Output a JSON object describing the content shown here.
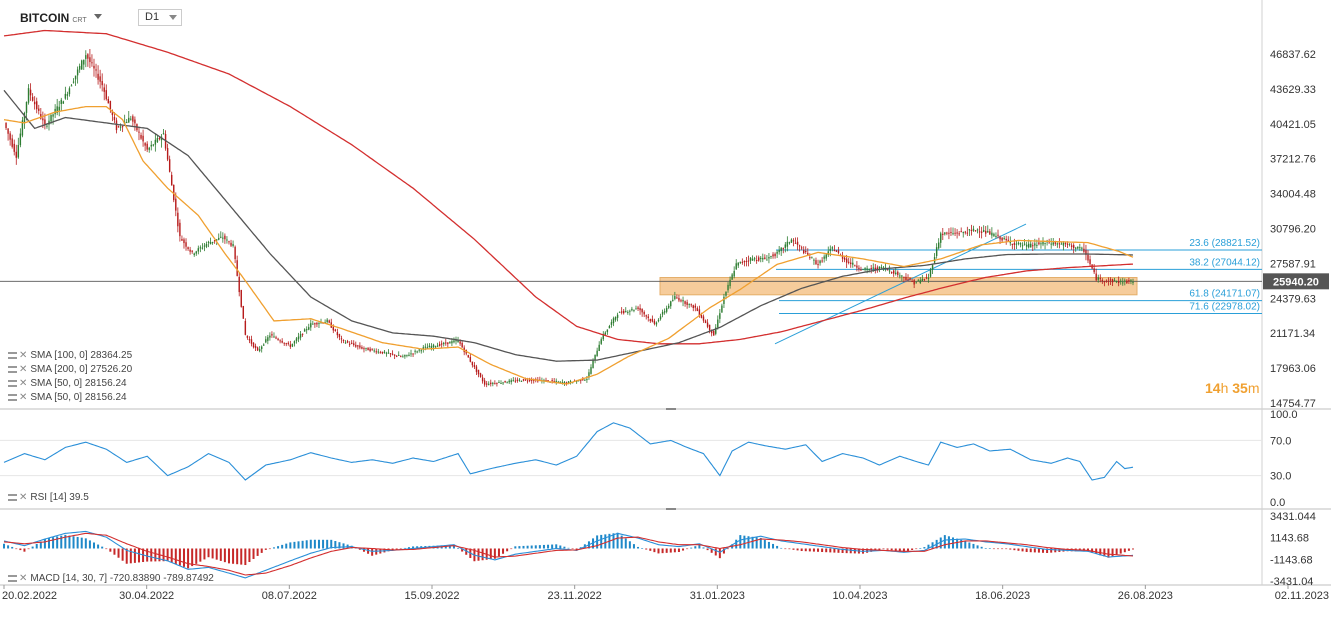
{
  "header": {
    "symbol": "BITCOIN",
    "symbol_sub": "CRT",
    "timeframe": "D1"
  },
  "price_axis": {
    "labels": [
      "46837.62",
      "43629.33",
      "40421.05",
      "37212.76",
      "34004.48",
      "30796.20",
      "27587.91",
      "24379.63",
      "21171.34",
      "17963.06",
      "14754.77"
    ],
    "current_price": "25940.20",
    "current_value": 25940.2
  },
  "rsi_axis": {
    "labels": [
      "100.0",
      "70.0",
      "30.0",
      "0.0"
    ]
  },
  "macd_axis": {
    "labels": [
      "3431.044",
      "1143.68",
      "-1143.68",
      "-3431.04"
    ]
  },
  "x_axis": {
    "labels": [
      "20.02.2022",
      "30.04.2022",
      "08.07.2022",
      "15.09.2022",
      "23.11.2022",
      "31.01.2023",
      "10.04.2023",
      "18.06.2023",
      "26.08.2023",
      "02.11.2023"
    ]
  },
  "fib_levels": [
    {
      "label": "23.6 (28821.52)",
      "value": 28821.52
    },
    {
      "label": "38.2 (27044.12)",
      "value": 27044.12
    },
    {
      "label": "61.8 (24171.07)",
      "value": 24171.07
    },
    {
      "label": "71.6 (22978.02)",
      "value": 22978.02
    }
  ],
  "indicators": {
    "sma100": "SMA [100, 0] 28364.25",
    "sma200": "SMA [200, 0] 27526.20",
    "sma50a": "SMA [50, 0] 28156.24",
    "sma50b": "SMA [50, 0] 28156.24",
    "rsi": "RSI [14] 39.5",
    "macd": "MACD [14, 30, 7] -720.83890 -789.87492"
  },
  "timer": {
    "hours": "14",
    "h_unit": "h",
    "minutes": "35",
    "m_unit": "m"
  },
  "colors": {
    "bull": "#2e7d32",
    "bear": "#b71c1c",
    "sma200": "#d32f2f",
    "sma100": "#555555",
    "sma50": "#f0a030",
    "fib": "#2a9fd8",
    "zone": "#f5c48a",
    "rsi": "#2a8fd8",
    "macd_line": "#2a8fd8",
    "signal_line": "#d32f2f"
  },
  "chart_data": {
    "type": "candlestick",
    "x_dates": [
      "2022-02-20",
      "2023-10-31"
    ],
    "ylim": [
      14754.77,
      50000
    ],
    "price_path": [
      [
        0,
        40500
      ],
      [
        6,
        37500
      ],
      [
        12,
        43500
      ],
      [
        20,
        40200
      ],
      [
        30,
        43000
      ],
      [
        40,
        46800
      ],
      [
        48,
        44000
      ],
      [
        55,
        40000
      ],
      [
        62,
        41000
      ],
      [
        70,
        38000
      ],
      [
        78,
        39500
      ],
      [
        86,
        30000
      ],
      [
        92,
        28500
      ],
      [
        100,
        29500
      ],
      [
        107,
        30000
      ],
      [
        112,
        29200
      ],
      [
        118,
        21000
      ],
      [
        124,
        19500
      ],
      [
        130,
        21000
      ],
      [
        140,
        20000
      ],
      [
        150,
        22000
      ],
      [
        158,
        22300
      ],
      [
        165,
        20500
      ],
      [
        175,
        19800
      ],
      [
        185,
        19400
      ],
      [
        195,
        19000
      ],
      [
        205,
        19800
      ],
      [
        215,
        20200
      ],
      [
        222,
        20500
      ],
      [
        228,
        18600
      ],
      [
        235,
        16500
      ],
      [
        245,
        16700
      ],
      [
        255,
        16900
      ],
      [
        265,
        16800
      ],
      [
        275,
        16600
      ],
      [
        285,
        17000
      ],
      [
        292,
        20700
      ],
      [
        300,
        23000
      ],
      [
        310,
        23500
      ],
      [
        318,
        22000
      ],
      [
        328,
        24500
      ],
      [
        338,
        23500
      ],
      [
        347,
        21000
      ],
      [
        352,
        24500
      ],
      [
        358,
        27500
      ],
      [
        365,
        28000
      ],
      [
        372,
        28000
      ],
      [
        378,
        28500
      ],
      [
        385,
        29800
      ],
      [
        392,
        28500
      ],
      [
        398,
        27500
      ],
      [
        405,
        29000
      ],
      [
        412,
        27800
      ],
      [
        420,
        27000
      ],
      [
        430,
        27200
      ],
      [
        438,
        26500
      ],
      [
        445,
        25800
      ],
      [
        452,
        26300
      ],
      [
        458,
        30300
      ],
      [
        468,
        30400
      ],
      [
        476,
        30700
      ],
      [
        484,
        30200
      ],
      [
        492,
        29500
      ],
      [
        500,
        29200
      ],
      [
        510,
        29500
      ],
      [
        520,
        29300
      ],
      [
        528,
        28800
      ],
      [
        534,
        26200
      ],
      [
        540,
        26000
      ],
      [
        546,
        25900
      ],
      [
        552,
        25940
      ]
    ],
    "sma200_path": [
      [
        0,
        48500
      ],
      [
        20,
        49000
      ],
      [
        50,
        48700
      ],
      [
        80,
        47000
      ],
      [
        110,
        45000
      ],
      [
        140,
        42000
      ],
      [
        170,
        38500
      ],
      [
        200,
        34500
      ],
      [
        230,
        29800
      ],
      [
        260,
        24500
      ],
      [
        280,
        21800
      ],
      [
        300,
        20600
      ],
      [
        320,
        20200
      ],
      [
        340,
        20200
      ],
      [
        360,
        20600
      ],
      [
        380,
        21300
      ],
      [
        400,
        22300
      ],
      [
        420,
        23300
      ],
      [
        440,
        24400
      ],
      [
        460,
        25400
      ],
      [
        480,
        26300
      ],
      [
        500,
        26900
      ],
      [
        520,
        27200
      ],
      [
        540,
        27400
      ],
      [
        552,
        27526
      ]
    ],
    "sma100_path": [
      [
        0,
        43500
      ],
      [
        15,
        40000
      ],
      [
        30,
        41000
      ],
      [
        50,
        40500
      ],
      [
        70,
        40000
      ],
      [
        90,
        37500
      ],
      [
        110,
        33000
      ],
      [
        130,
        28500
      ],
      [
        150,
        24500
      ],
      [
        170,
        22300
      ],
      [
        190,
        21200
      ],
      [
        210,
        20900
      ],
      [
        230,
        20300
      ],
      [
        250,
        19200
      ],
      [
        270,
        18600
      ],
      [
        290,
        18700
      ],
      [
        310,
        19500
      ],
      [
        330,
        20300
      ],
      [
        350,
        21700
      ],
      [
        370,
        23700
      ],
      [
        390,
        25300
      ],
      [
        410,
        26400
      ],
      [
        430,
        27100
      ],
      [
        450,
        27400
      ],
      [
        470,
        28000
      ],
      [
        490,
        28400
      ],
      [
        510,
        28450
      ],
      [
        530,
        28450
      ],
      [
        552,
        28364
      ]
    ],
    "sma50_path": [
      [
        0,
        40800
      ],
      [
        10,
        40500
      ],
      [
        25,
        41500
      ],
      [
        40,
        42000
      ],
      [
        50,
        42000
      ],
      [
        58,
        40800
      ],
      [
        68,
        37000
      ],
      [
        80,
        34500
      ],
      [
        95,
        32000
      ],
      [
        108,
        28500
      ],
      [
        118,
        26000
      ],
      [
        132,
        22300
      ],
      [
        150,
        22500
      ],
      [
        165,
        21600
      ],
      [
        185,
        20300
      ],
      [
        205,
        19700
      ],
      [
        222,
        19900
      ],
      [
        238,
        18300
      ],
      [
        255,
        17000
      ],
      [
        275,
        16500
      ],
      [
        290,
        17400
      ],
      [
        305,
        19000
      ],
      [
        325,
        20700
      ],
      [
        345,
        23500
      ],
      [
        360,
        25200
      ],
      [
        378,
        27500
      ],
      [
        398,
        28600
      ],
      [
        420,
        28000
      ],
      [
        440,
        27300
      ],
      [
        458,
        28000
      ],
      [
        478,
        29300
      ],
      [
        496,
        29700
      ],
      [
        512,
        29600
      ],
      [
        530,
        29500
      ],
      [
        545,
        28700
      ],
      [
        552,
        28156
      ]
    ],
    "rsi_path": [
      [
        0,
        45
      ],
      [
        10,
        55
      ],
      [
        20,
        48
      ],
      [
        30,
        62
      ],
      [
        40,
        68
      ],
      [
        50,
        60
      ],
      [
        60,
        45
      ],
      [
        70,
        52
      ],
      [
        80,
        30
      ],
      [
        90,
        40
      ],
      [
        100,
        55
      ],
      [
        110,
        45
      ],
      [
        118,
        25
      ],
      [
        128,
        42
      ],
      [
        140,
        48
      ],
      [
        150,
        56
      ],
      [
        160,
        50
      ],
      [
        170,
        45
      ],
      [
        180,
        48
      ],
      [
        190,
        44
      ],
      [
        200,
        50
      ],
      [
        210,
        46
      ],
      [
        222,
        55
      ],
      [
        228,
        32
      ],
      [
        238,
        38
      ],
      [
        250,
        44
      ],
      [
        260,
        48
      ],
      [
        270,
        42
      ],
      [
        280,
        52
      ],
      [
        290,
        80
      ],
      [
        298,
        90
      ],
      [
        306,
        84
      ],
      [
        316,
        66
      ],
      [
        326,
        70
      ],
      [
        334,
        62
      ],
      [
        342,
        55
      ],
      [
        350,
        30
      ],
      [
        356,
        58
      ],
      [
        364,
        68
      ],
      [
        372,
        64
      ],
      [
        382,
        60
      ],
      [
        392,
        65
      ],
      [
        400,
        46
      ],
      [
        410,
        55
      ],
      [
        420,
        50
      ],
      [
        428,
        42
      ],
      [
        438,
        52
      ],
      [
        446,
        46
      ],
      [
        452,
        42
      ],
      [
        458,
        68
      ],
      [
        466,
        62
      ],
      [
        474,
        66
      ],
      [
        482,
        58
      ],
      [
        492,
        60
      ],
      [
        502,
        48
      ],
      [
        512,
        44
      ],
      [
        520,
        50
      ],
      [
        526,
        46
      ],
      [
        532,
        25
      ],
      [
        538,
        28
      ],
      [
        544,
        46
      ],
      [
        548,
        38
      ],
      [
        552,
        39.5
      ]
    ],
    "macd_path": [
      [
        0,
        800
      ],
      [
        10,
        300
      ],
      [
        20,
        1000
      ],
      [
        30,
        1600
      ],
      [
        40,
        1800
      ],
      [
        50,
        1200
      ],
      [
        60,
        -200
      ],
      [
        70,
        -800
      ],
      [
        80,
        -1300
      ],
      [
        90,
        -2200
      ],
      [
        100,
        -2000
      ],
      [
        110,
        -2600
      ],
      [
        118,
        -3100
      ],
      [
        128,
        -2300
      ],
      [
        140,
        -1300
      ],
      [
        150,
        -500
      ],
      [
        160,
        100
      ],
      [
        170,
        200
      ],
      [
        180,
        -300
      ],
      [
        190,
        -200
      ],
      [
        200,
        0
      ],
      [
        210,
        200
      ],
      [
        220,
        400
      ],
      [
        230,
        -700
      ],
      [
        240,
        -1200
      ],
      [
        250,
        -600
      ],
      [
        260,
        -300
      ],
      [
        270,
        0
      ],
      [
        280,
        -200
      ],
      [
        290,
        800
      ],
      [
        300,
        1600
      ],
      [
        310,
        1100
      ],
      [
        320,
        400
      ],
      [
        330,
        200
      ],
      [
        340,
        500
      ],
      [
        350,
        -400
      ],
      [
        360,
        900
      ],
      [
        370,
        1300
      ],
      [
        380,
        800
      ],
      [
        390,
        500
      ],
      [
        400,
        200
      ],
      [
        410,
        -100
      ],
      [
        420,
        -300
      ],
      [
        430,
        -200
      ],
      [
        440,
        -400
      ],
      [
        450,
        -200
      ],
      [
        460,
        900
      ],
      [
        470,
        1000
      ],
      [
        480,
        700
      ],
      [
        490,
        500
      ],
      [
        500,
        200
      ],
      [
        510,
        -100
      ],
      [
        520,
        -200
      ],
      [
        530,
        -300
      ],
      [
        540,
        -900
      ],
      [
        552,
        -721
      ]
    ],
    "signal_path": [
      [
        0,
        700
      ],
      [
        10,
        500
      ],
      [
        20,
        700
      ],
      [
        30,
        1200
      ],
      [
        40,
        1600
      ],
      [
        50,
        1400
      ],
      [
        60,
        500
      ],
      [
        70,
        -300
      ],
      [
        80,
        -900
      ],
      [
        90,
        -1600
      ],
      [
        100,
        -1900
      ],
      [
        110,
        -2300
      ],
      [
        118,
        -2800
      ],
      [
        128,
        -2600
      ],
      [
        140,
        -1800
      ],
      [
        150,
        -1000
      ],
      [
        160,
        -300
      ],
      [
        170,
        100
      ],
      [
        180,
        0
      ],
      [
        190,
        -150
      ],
      [
        200,
        -100
      ],
      [
        210,
        100
      ],
      [
        220,
        300
      ],
      [
        230,
        -200
      ],
      [
        240,
        -900
      ],
      [
        250,
        -800
      ],
      [
        260,
        -500
      ],
      [
        270,
        -200
      ],
      [
        280,
        -150
      ],
      [
        290,
        300
      ],
      [
        300,
        1100
      ],
      [
        310,
        1200
      ],
      [
        320,
        700
      ],
      [
        330,
        400
      ],
      [
        340,
        400
      ],
      [
        350,
        0
      ],
      [
        360,
        400
      ],
      [
        370,
        1000
      ],
      [
        380,
        900
      ],
      [
        390,
        700
      ],
      [
        400,
        400
      ],
      [
        410,
        100
      ],
      [
        420,
        -100
      ],
      [
        430,
        -200
      ],
      [
        440,
        -300
      ],
      [
        450,
        -300
      ],
      [
        460,
        400
      ],
      [
        470,
        800
      ],
      [
        480,
        800
      ],
      [
        490,
        600
      ],
      [
        500,
        400
      ],
      [
        510,
        100
      ],
      [
        520,
        -100
      ],
      [
        530,
        -200
      ],
      [
        540,
        -600
      ],
      [
        552,
        -790
      ]
    ]
  }
}
